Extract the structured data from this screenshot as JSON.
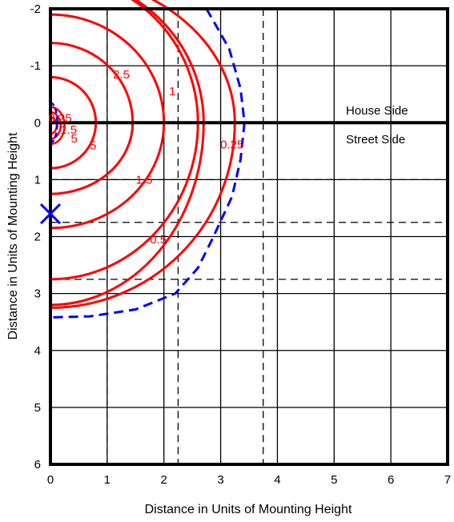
{
  "chart_data": {
    "type": "isofootcandle-contour",
    "xlabel": "Distance in Units of Mounting Height",
    "ylabel": "Distance in Units of Mounting Height",
    "xlim": [
      0,
      7
    ],
    "ylim": [
      -2,
      6
    ],
    "y_axis_inverted": true,
    "x_ticks": [
      "0",
      "1",
      "2",
      "3",
      "4",
      "5",
      "6",
      "7"
    ],
    "y_ticks": [
      "-2",
      "-1",
      "0",
      "1",
      "2",
      "3",
      "4",
      "5",
      "6"
    ],
    "grid": true,
    "side_labels": {
      "house": "House Side",
      "street": "Street Side"
    },
    "dashed_gridlines": {
      "x": [
        1,
        2.25,
        3.75
      ],
      "y": [
        1,
        1.75,
        2.75
      ]
    },
    "luminaire_position": {
      "x": 0,
      "y": 1.6,
      "marker": "x",
      "color": "#0000ff"
    },
    "contour_color": "#ff0000",
    "boundary_color": "#0000ff",
    "contours": [
      {
        "label": "5",
        "label_at": [
          0.75,
          0.4
        ],
        "center": [
          0,
          0
        ],
        "rx": 0.8,
        "ry_house": 0.8,
        "ry_street": 0.8
      },
      {
        "label": "2.5",
        "label_at": [
          1.25,
          -0.85
        ],
        "center": [
          0,
          0
        ],
        "rx": 1.45,
        "ry_house": 1.4,
        "ry_street": 1.25
      },
      {
        "label": "1.5",
        "label_at": [
          1.65,
          1.0
        ],
        "center": [
          0,
          0
        ],
        "rx": 2.0,
        "ry_house": 1.9,
        "ry_street": 1.85
      },
      {
        "label": "1",
        "label_at": [
          2.15,
          -0.55
        ],
        "center": [
          0,
          0
        ],
        "rx": 2.6,
        "ry_house": 2.6,
        "ry_street": 2.75
      },
      {
        "label": "0.5",
        "label_at": [
          1.9,
          2.05
        ],
        "center": [
          0,
          0
        ],
        "rx": 2.7,
        "ry_house": 2.6,
        "ry_street": 3.2
      },
      {
        "label": "0.25",
        "label_at": [
          3.2,
          0.38
        ],
        "center": [
          0,
          0
        ],
        "rx": 3.25,
        "ry_house": 2.6,
        "ry_street": 3.25
      }
    ],
    "small_contour_labels": [
      "0.25",
      "1.5",
      "5"
    ],
    "boundary_dashed": [
      [
        2.75,
        -2.0
      ],
      [
        3.15,
        -1.3
      ],
      [
        3.35,
        -0.6
      ],
      [
        3.42,
        0
      ],
      [
        3.35,
        0.65
      ],
      [
        3.2,
        1.3
      ],
      [
        2.85,
        2.05
      ],
      [
        2.6,
        2.55
      ],
      [
        2.2,
        3.0
      ],
      [
        1.5,
        3.28
      ],
      [
        0.7,
        3.4
      ],
      [
        0,
        3.42
      ]
    ]
  }
}
